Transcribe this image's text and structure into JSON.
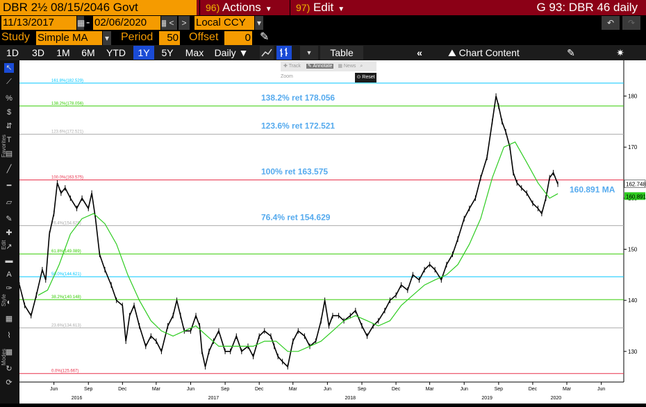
{
  "header": {
    "security": "DBR 2½ 08/15/2046 Govt",
    "actions": {
      "num": "96)",
      "label": "Actions"
    },
    "edit": {
      "num": "97)",
      "label": "Edit"
    },
    "chart_id": "G 93: DBR 46 daily"
  },
  "range": {
    "start": "11/13/2017",
    "end": "02/06/2020",
    "currency": "Local CCY"
  },
  "study": {
    "label": "Study",
    "value": "Simple MA",
    "period_label": "Period",
    "period": "50",
    "offset_label": "Offset",
    "offset": "0"
  },
  "tabs": [
    "1D",
    "3D",
    "1M",
    "6M",
    "YTD",
    "1Y",
    "5Y",
    "Max",
    "Daily ▼"
  ],
  "selected_tab": "1Y",
  "toolbar": {
    "table": "Table",
    "chart_content": "Chart Content"
  },
  "popup": {
    "track": "Track",
    "annotate": "Annotate",
    "news": "News",
    "zoom": "Zoom",
    "reset": "Reset"
  },
  "sidebar_labels": [
    "Favorites",
    "Edit",
    "Style",
    "Modes"
  ],
  "colors": {
    "price": "#000000",
    "ma": "#2ecc20",
    "accent": "#f59b00",
    "header": "#8b0016",
    "fib_text": "#55aaee"
  },
  "chart_data": {
    "type": "line",
    "series": [
      {
        "values": [
          [
            "2016-03-01",
            143
          ],
          [
            "2016-03-15",
            139
          ],
          [
            "2016-04-01",
            137
          ],
          [
            "2016-04-15",
            141
          ],
          [
            "2016-05-01",
            146
          ],
          [
            "2016-05-10",
            144
          ],
          [
            "2016-05-20",
            153
          ],
          [
            "2016-06-01",
            157
          ],
          [
            "2016-06-10",
            163
          ],
          [
            "2016-06-20",
            161
          ],
          [
            "2016-07-01",
            162
          ],
          [
            "2016-07-15",
            160
          ],
          [
            "2016-08-01",
            158
          ],
          [
            "2016-08-15",
            160
          ],
          [
            "2016-09-01",
            158
          ],
          [
            "2016-09-10",
            161
          ],
          [
            "2016-09-20",
            156
          ],
          [
            "2016-10-01",
            149
          ],
          [
            "2016-10-15",
            146
          ],
          [
            "2016-11-01",
            143
          ],
          [
            "2016-11-15",
            140
          ],
          [
            "2016-12-01",
            139
          ],
          [
            "2016-12-10",
            132
          ],
          [
            "2016-12-20",
            137
          ],
          [
            "2017-01-01",
            139
          ],
          [
            "2017-01-15",
            135
          ],
          [
            "2017-02-01",
            131
          ],
          [
            "2017-02-15",
            133
          ],
          [
            "2017-03-01",
            132
          ],
          [
            "2017-03-15",
            130
          ],
          [
            "2017-04-01",
            135
          ],
          [
            "2017-04-15",
            137
          ],
          [
            "2017-04-25",
            140
          ],
          [
            "2017-05-05",
            137
          ],
          [
            "2017-05-15",
            134
          ],
          [
            "2017-06-01",
            134
          ],
          [
            "2017-06-15",
            137
          ],
          [
            "2017-06-25",
            135
          ],
          [
            "2017-07-01",
            130
          ],
          [
            "2017-07-10",
            127
          ],
          [
            "2017-07-20",
            130
          ],
          [
            "2017-08-01",
            132
          ],
          [
            "2017-08-15",
            134
          ],
          [
            "2017-09-01",
            130
          ],
          [
            "2017-09-15",
            130
          ],
          [
            "2017-10-01",
            133
          ],
          [
            "2017-10-15",
            130
          ],
          [
            "2017-11-01",
            131
          ],
          [
            "2017-11-15",
            129
          ],
          [
            "2017-12-01",
            133
          ],
          [
            "2017-12-15",
            134
          ],
          [
            "2018-01-01",
            133
          ],
          [
            "2018-01-10",
            131
          ],
          [
            "2018-01-20",
            129
          ],
          [
            "2018-02-01",
            128
          ],
          [
            "2018-02-15",
            127
          ],
          [
            "2018-03-01",
            132
          ],
          [
            "2018-03-15",
            134
          ],
          [
            "2018-04-01",
            133
          ],
          [
            "2018-04-15",
            131
          ],
          [
            "2018-05-01",
            132
          ],
          [
            "2018-05-15",
            136
          ],
          [
            "2018-05-25",
            140
          ],
          [
            "2018-06-05",
            135
          ],
          [
            "2018-06-15",
            137
          ],
          [
            "2018-07-01",
            137
          ],
          [
            "2018-07-15",
            136
          ],
          [
            "2018-08-01",
            137
          ],
          [
            "2018-08-15",
            138
          ],
          [
            "2018-09-01",
            135
          ],
          [
            "2018-09-15",
            133
          ],
          [
            "2018-10-01",
            135
          ],
          [
            "2018-10-15",
            136
          ],
          [
            "2018-11-01",
            138
          ],
          [
            "2018-11-15",
            140
          ],
          [
            "2018-12-01",
            141
          ],
          [
            "2018-12-15",
            143
          ],
          [
            "2019-01-01",
            142
          ],
          [
            "2019-01-15",
            145
          ],
          [
            "2019-02-01",
            144
          ],
          [
            "2019-02-15",
            146
          ],
          [
            "2019-03-01",
            147
          ],
          [
            "2019-03-15",
            146
          ],
          [
            "2019-04-01",
            144
          ],
          [
            "2019-04-15",
            147
          ],
          [
            "2019-05-01",
            149
          ],
          [
            "2019-05-15",
            152
          ],
          [
            "2019-06-01",
            156
          ],
          [
            "2019-06-15",
            158
          ],
          [
            "2019-07-01",
            160
          ],
          [
            "2019-07-15",
            164
          ],
          [
            "2019-08-01",
            168
          ],
          [
            "2019-08-15",
            175
          ],
          [
            "2019-08-25",
            180
          ],
          [
            "2019-09-01",
            178
          ],
          [
            "2019-09-10",
            175
          ],
          [
            "2019-09-20",
            173
          ],
          [
            "2019-10-01",
            170
          ],
          [
            "2019-10-10",
            165
          ],
          [
            "2019-10-20",
            163
          ],
          [
            "2019-11-01",
            162
          ],
          [
            "2019-11-15",
            161
          ],
          [
            "2019-12-01",
            159
          ],
          [
            "2019-12-15",
            158
          ],
          [
            "2019-12-25",
            157
          ],
          [
            "2020-01-05",
            160
          ],
          [
            "2020-01-15",
            164
          ],
          [
            "2020-01-25",
            165
          ],
          [
            "2020-02-06",
            162.748
          ]
        ]
      },
      {
        "name": "MA",
        "values": [
          [
            "2016-04-20",
            141
          ],
          [
            "2016-05-15",
            142
          ],
          [
            "2016-06-15",
            147
          ],
          [
            "2016-07-15",
            153
          ],
          [
            "2016-08-15",
            156
          ],
          [
            "2016-09-15",
            157
          ],
          [
            "2016-10-15",
            155
          ],
          [
            "2016-11-15",
            151
          ],
          [
            "2016-12-15",
            145
          ],
          [
            "2017-01-15",
            140
          ],
          [
            "2017-02-15",
            136
          ],
          [
            "2017-03-15",
            134
          ],
          [
            "2017-04-15",
            133
          ],
          [
            "2017-05-15",
            134
          ],
          [
            "2017-06-15",
            135
          ],
          [
            "2017-07-15",
            133
          ],
          [
            "2017-08-15",
            131
          ],
          [
            "2017-09-15",
            131
          ],
          [
            "2017-10-15",
            131
          ],
          [
            "2017-11-15",
            131
          ],
          [
            "2017-12-15",
            132
          ],
          [
            "2018-01-15",
            132
          ],
          [
            "2018-02-15",
            130
          ],
          [
            "2018-03-15",
            130
          ],
          [
            "2018-04-15",
            131
          ],
          [
            "2018-05-15",
            132
          ],
          [
            "2018-06-15",
            134
          ],
          [
            "2018-07-15",
            136
          ],
          [
            "2018-08-15",
            137
          ],
          [
            "2018-09-15",
            136
          ],
          [
            "2018-10-15",
            135
          ],
          [
            "2018-11-15",
            136
          ],
          [
            "2018-12-15",
            139
          ],
          [
            "2019-01-15",
            141
          ],
          [
            "2019-02-15",
            143
          ],
          [
            "2019-03-15",
            144
          ],
          [
            "2019-04-15",
            145
          ],
          [
            "2019-05-15",
            147
          ],
          [
            "2019-06-15",
            151
          ],
          [
            "2019-07-15",
            156
          ],
          [
            "2019-08-15",
            164
          ],
          [
            "2019-09-15",
            170
          ],
          [
            "2019-10-15",
            171
          ],
          [
            "2019-11-15",
            167
          ],
          [
            "2019-12-15",
            163
          ],
          [
            "2020-01-15",
            160
          ],
          [
            "2020-02-06",
            160.891
          ]
        ]
      }
    ],
    "fib_levels": [
      {
        "axis_label": "161.8%(182.529)",
        "value": 182.529,
        "color": "#00c8ff"
      },
      {
        "axis_label": "138.2%(178.056)",
        "value": 178.056,
        "color": "#33cc00",
        "annotation": "138.2% ret 178.056"
      },
      {
        "axis_label": "123.6%(172.521)",
        "value": 172.521,
        "color": "#aaaaaa",
        "annotation": "123.6% ret 172.521"
      },
      {
        "axis_label": "100.0%(163.575)",
        "value": 163.575,
        "color": "#e8304a",
        "annotation": "100% ret 163.575"
      },
      {
        "axis_label": "76.4%(154.629)",
        "value": 154.629,
        "color": "#aaaaaa",
        "annotation": "76.4% ret 154.629"
      },
      {
        "axis_label": "61.8%(149.089)",
        "value": 149.089,
        "color": "#33cc00"
      },
      {
        "axis_label": "50.0%(144.621)",
        "value": 144.621,
        "color": "#00c8ff"
      },
      {
        "axis_label": "38.2%(140.148)",
        "value": 140.148,
        "color": "#33cc00"
      },
      {
        "axis_label": "23.6%(134.613)",
        "value": 134.613,
        "color": "#aaaaaa"
      },
      {
        "axis_label": "0.0%(125.667)",
        "value": 125.667,
        "color": "#e8304a"
      }
    ],
    "ma_label": "160.891 MA",
    "last_price": "162.748",
    "last_ma": "160.891",
    "y_ticks": [
      130,
      140,
      150,
      160,
      170,
      180
    ],
    "ylim": [
      124,
      187
    ],
    "xlim": [
      "2016-03-01",
      "2020-07-31"
    ],
    "x_month_ticks": [
      [
        "2016-06-01",
        "Jun"
      ],
      [
        "2016-09-01",
        "Sep"
      ],
      [
        "2016-12-01",
        "Dec"
      ],
      [
        "2017-03-01",
        "Mar"
      ],
      [
        "2017-06-01",
        "Jun"
      ],
      [
        "2017-09-01",
        "Sep"
      ],
      [
        "2017-12-01",
        "Dec"
      ],
      [
        "2018-03-01",
        "Mar"
      ],
      [
        "2018-06-01",
        "Jun"
      ],
      [
        "2018-09-01",
        "Sep"
      ],
      [
        "2018-12-01",
        "Dec"
      ],
      [
        "2019-03-01",
        "Mar"
      ],
      [
        "2019-06-01",
        "Jun"
      ],
      [
        "2019-09-01",
        "Sep"
      ],
      [
        "2019-12-01",
        "Dec"
      ],
      [
        "2020-03-01",
        "Mar"
      ],
      [
        "2020-06-01",
        "Jun"
      ]
    ],
    "x_year_ticks": [
      [
        "2016-08-01",
        "2016"
      ],
      [
        "2017-08-01",
        "2017"
      ],
      [
        "2018-08-01",
        "2018"
      ],
      [
        "2019-08-01",
        "2019"
      ],
      [
        "2020-02-01",
        "2020"
      ]
    ]
  }
}
